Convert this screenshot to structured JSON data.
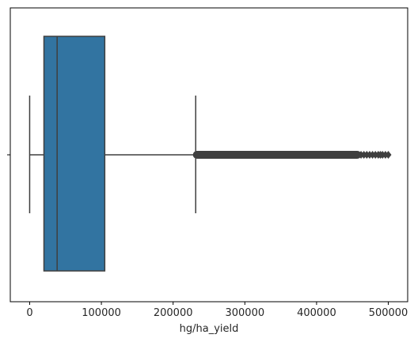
{
  "chart_data": {
    "type": "box",
    "orientation": "horizontal",
    "title": "",
    "xlabel": "hg/ha_yield",
    "ylabel": "",
    "xlim": [
      -27000,
      527000
    ],
    "xticks": [
      0,
      100000,
      200000,
      300000,
      400000,
      500000
    ],
    "xtick_labels": [
      "0",
      "100000",
      "200000",
      "300000",
      "400000",
      "500000"
    ],
    "grid": false,
    "box": {
      "whisker_low": 0,
      "q1": 19900,
      "median": 38300,
      "q3": 104700,
      "whisker_high": 231500,
      "outliers_dense_from": 232000,
      "outliers_dense_to": 458000,
      "outliers_sparse": [
        462000,
        466000,
        470000,
        474000,
        478000,
        482000,
        486000,
        489000,
        492000,
        496000,
        500000
      ]
    },
    "colors": {
      "box_fill": "#3274a1",
      "lines": "#3f3f3f",
      "axes": "#000000"
    }
  }
}
